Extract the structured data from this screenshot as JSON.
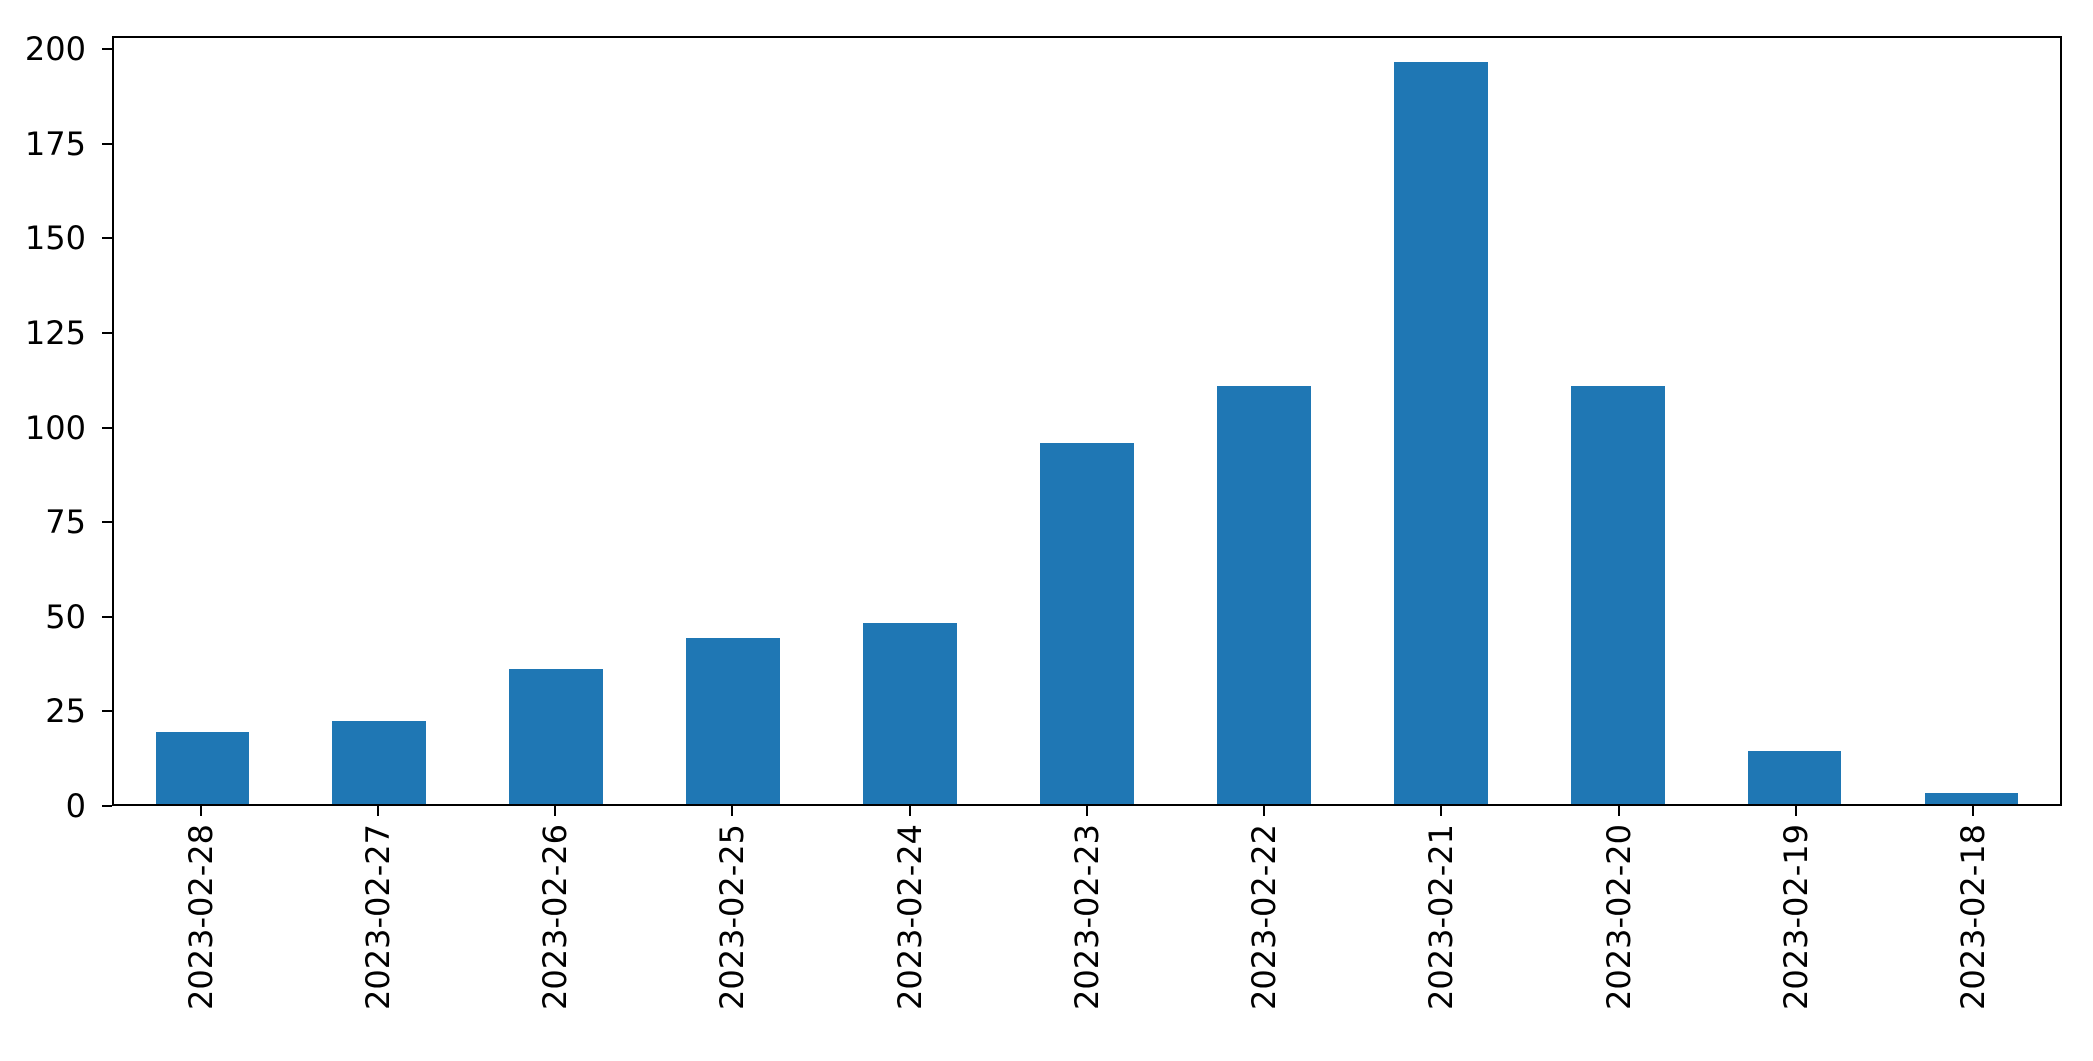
{
  "chart_data": {
    "type": "bar",
    "title": "",
    "xlabel": "",
    "ylabel": "",
    "categories": [
      "2023-02-28",
      "2023-02-27",
      "2023-02-26",
      "2023-02-25",
      "2023-02-24",
      "2023-02-23",
      "2023-02-22",
      "2023-02-21",
      "2023-02-20",
      "2023-02-19",
      "2023-02-18"
    ],
    "values": [
      19,
      22,
      36,
      44,
      48,
      96,
      111,
      197,
      111,
      14,
      3
    ],
    "yticks": [
      0,
      25,
      50,
      75,
      100,
      125,
      150,
      175,
      200
    ],
    "ylim": [
      0,
      203.5
    ],
    "x_tick_rotation": 90,
    "grid": false,
    "legend": "none",
    "bar_color": "#1f77b4",
    "axis_color": "#000000",
    "background": "#ffffff"
  }
}
